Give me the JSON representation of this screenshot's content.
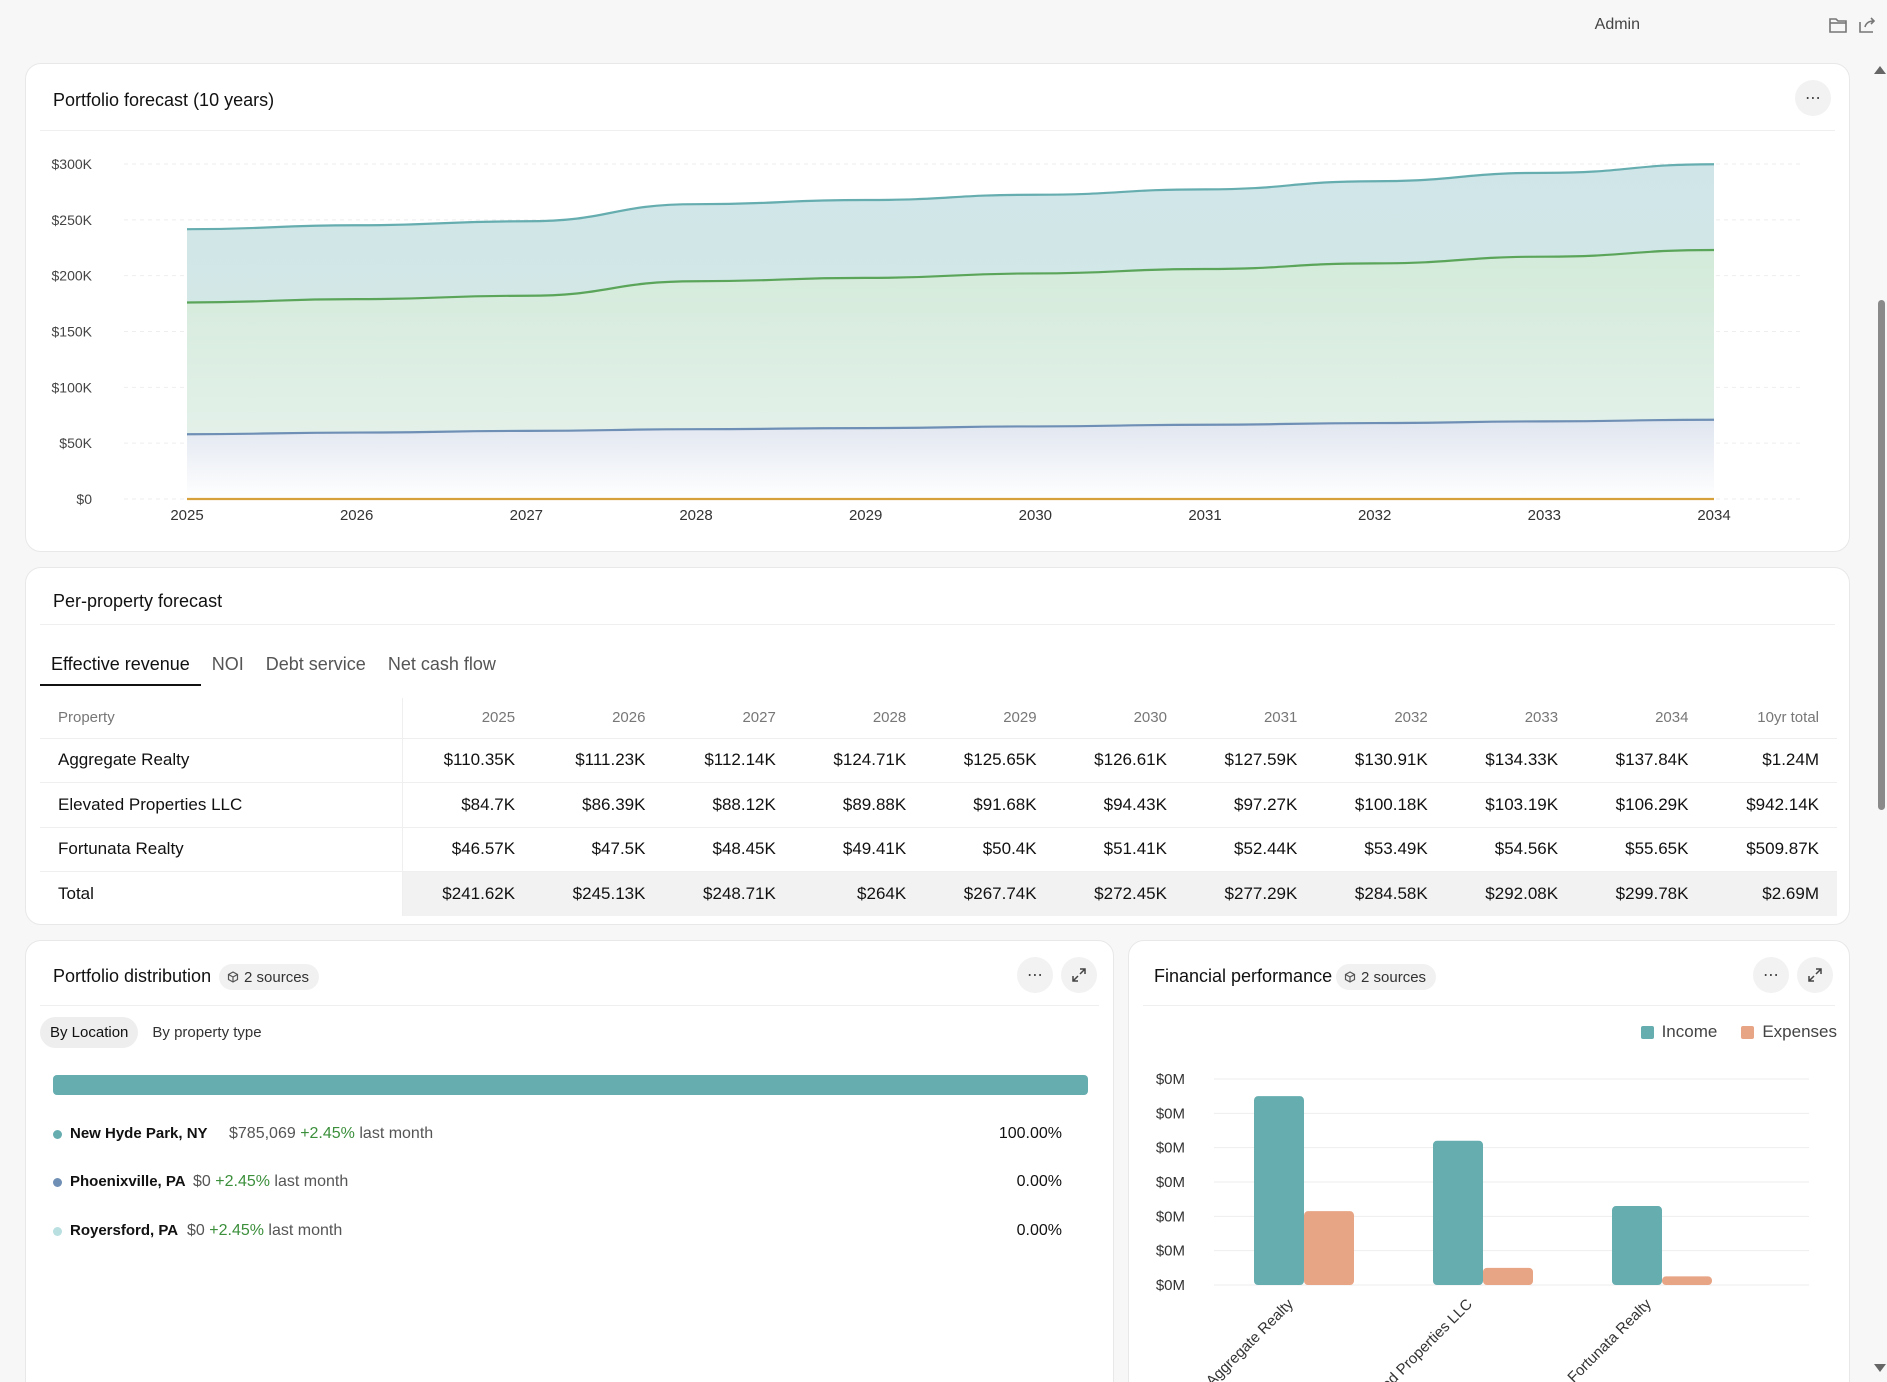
{
  "topbar": {
    "user": "Admin",
    "icons": [
      "folder-icon",
      "share-icon"
    ]
  },
  "colors": {
    "teal": "#66adb0",
    "green": "#5aa55a",
    "slate": "#6f8fb5",
    "gold": "#d6a13a",
    "expense": "#e8a585",
    "light_teal": "#b9dfe0"
  },
  "forecast": {
    "title": "Portfolio forecast (10 years)",
    "chart_data": {
      "type": "area",
      "x": [
        "2025",
        "2026",
        "2027",
        "2028",
        "2029",
        "2030",
        "2031",
        "2032",
        "2033",
        "2034"
      ],
      "yticks": [
        "$0",
        "$50K",
        "$100K",
        "$150K",
        "$200K",
        "$250K",
        "$300K"
      ],
      "ylim": [
        0,
        300000
      ],
      "grid": true,
      "series": [
        {
          "values": [
            241620,
            245130,
            248710,
            264000,
            267740,
            272450,
            277290,
            284580,
            292080,
            299780
          ],
          "color": "#66adb0"
        },
        {
          "values": [
            176000,
            179000,
            182000,
            195000,
            198000,
            202000,
            206000,
            211000,
            217000,
            223000
          ],
          "color": "#5aa55a"
        },
        {
          "values": [
            58000,
            59500,
            61000,
            62500,
            63500,
            65000,
            66500,
            68000,
            69500,
            71000
          ],
          "color": "#6f8fb5"
        },
        {
          "values": [
            0,
            0,
            0,
            0,
            0,
            0,
            0,
            0,
            0,
            0
          ],
          "color": "#d6a13a"
        }
      ]
    }
  },
  "perprop": {
    "title": "Per-property forecast",
    "tabs": [
      "Effective revenue",
      "NOI",
      "Debt service",
      "Net cash flow"
    ],
    "columns": [
      "Property",
      "2025",
      "2026",
      "2027",
      "2028",
      "2029",
      "2030",
      "2031",
      "2032",
      "2033",
      "2034",
      "10yr total"
    ],
    "rows": [
      [
        "Aggregate Realty",
        "$110.35K",
        "$111.23K",
        "$112.14K",
        "$124.71K",
        "$125.65K",
        "$126.61K",
        "$127.59K",
        "$130.91K",
        "$134.33K",
        "$137.84K",
        "$1.24M"
      ],
      [
        "Elevated Properties LLC",
        "$84.7K",
        "$86.39K",
        "$88.12K",
        "$89.88K",
        "$91.68K",
        "$94.43K",
        "$97.27K",
        "$100.18K",
        "$103.19K",
        "$106.29K",
        "$942.14K"
      ],
      [
        "Fortunata Realty",
        "$46.57K",
        "$47.5K",
        "$48.45K",
        "$49.41K",
        "$50.4K",
        "$51.41K",
        "$52.44K",
        "$53.49K",
        "$54.56K",
        "$55.65K",
        "$509.87K"
      ],
      [
        "Total",
        "$241.62K",
        "$245.13K",
        "$248.71K",
        "$264K",
        "$267.74K",
        "$272.45K",
        "$277.29K",
        "$284.58K",
        "$292.08K",
        "$299.78K",
        "$2.69M"
      ]
    ]
  },
  "distribution": {
    "title": "Portfolio distribution",
    "badge": "2 sources",
    "subtabs": [
      "By Location",
      "By property type"
    ],
    "bar_share": 1.0,
    "locations": [
      {
        "name": "New Hyde Park, NY",
        "value": "$785,069",
        "change": "+2.45%",
        "suffix": "last month",
        "pct": "100.00%",
        "color": "#66adb0"
      },
      {
        "name": "Phoenixville, PA",
        "value": "$0",
        "change": "+2.45%",
        "suffix": "last month",
        "pct": "0.00%",
        "color": "#6f8fb5"
      },
      {
        "name": "Royersford, PA",
        "value": "$0",
        "change": "+2.45%",
        "suffix": "last month",
        "pct": "0.00%",
        "color": "#b9dfe0"
      }
    ]
  },
  "financial": {
    "title": "Financial performance",
    "badge": "2 sources",
    "chart_data": {
      "type": "bar",
      "categories": [
        "Aggregate Realty",
        "Elevated Properties LLC",
        "Fortunata Realty"
      ],
      "yticks": [
        "$0M",
        "$0M",
        "$0M",
        "$0M",
        "$0M",
        "$0M",
        "$0M"
      ],
      "ylim": [
        0,
        6
      ],
      "series": [
        {
          "name": "Income",
          "values": [
            5.5,
            4.2,
            2.3
          ],
          "color": "#66adb0"
        },
        {
          "name": "Expenses",
          "values": [
            2.15,
            0.5,
            0.25
          ],
          "color": "#e8a585"
        }
      ]
    }
  }
}
